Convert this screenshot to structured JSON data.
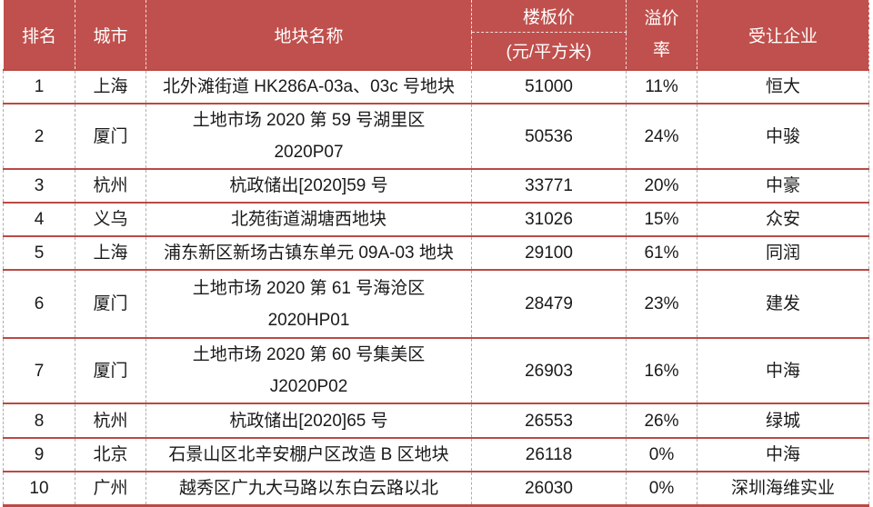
{
  "table": {
    "header": {
      "rank": "排名",
      "city": "城市",
      "parcel": "地块名称",
      "price_title": "楼板价",
      "price_unit": "(元/平方米)",
      "premium": "溢价\n率",
      "company": "受让企业"
    },
    "rows": [
      {
        "rank": "1",
        "city": "上海",
        "parcel": "北外滩街道 HK286A-03a、03c 号地块",
        "price": "51000",
        "premium": "11%",
        "company": "恒大"
      },
      {
        "rank": "2",
        "city": "厦门",
        "parcel": "土地市场 2020 第 59 号湖里区\n2020P07",
        "price": "50536",
        "premium": "24%",
        "company": "中骏"
      },
      {
        "rank": "3",
        "city": "杭州",
        "parcel": "杭政储出[2020]59 号",
        "price": "33771",
        "premium": "20%",
        "company": "中豪"
      },
      {
        "rank": "4",
        "city": "义乌",
        "parcel": "北苑街道湖塘西地块",
        "price": "31026",
        "premium": "15%",
        "company": "众安"
      },
      {
        "rank": "5",
        "city": "上海",
        "parcel": "浦东新区新场古镇东单元 09A-03 地块",
        "price": "29100",
        "premium": "61%",
        "company": "同润"
      },
      {
        "rank": "6",
        "city": "厦门",
        "parcel": "土地市场 2020 第 61 号海沧区\n2020HP01",
        "price": "28479",
        "premium": "23%",
        "company": "建发"
      },
      {
        "rank": "7",
        "city": "厦门",
        "parcel": "土地市场 2020 第 60 号集美区\nJ2020P02",
        "price": "26903",
        "premium": "16%",
        "company": "中海"
      },
      {
        "rank": "8",
        "city": "杭州",
        "parcel": "杭政储出[2020]65 号",
        "price": "26553",
        "premium": "26%",
        "company": "绿城"
      },
      {
        "rank": "9",
        "city": "北京",
        "parcel": "石景山区北辛安棚户区改造 B 区地块",
        "price": "26118",
        "premium": "0%",
        "company": "中海"
      },
      {
        "rank": "10",
        "city": "广州",
        "parcel": "越秀区广九大马路以东白云路以北",
        "price": "26030",
        "premium": "0%",
        "company": "深圳海维实业"
      }
    ]
  },
  "chart_data": {
    "type": "table",
    "title": "",
    "columns": [
      "排名",
      "城市",
      "地块名称",
      "楼板价(元/平方米)",
      "溢价率",
      "受让企业"
    ],
    "rows": [
      [
        "1",
        "上海",
        "北外滩街道 HK286A-03a、03c 号地块",
        "51000",
        "11%",
        "恒大"
      ],
      [
        "2",
        "厦门",
        "土地市场 2020 第 59 号湖里区 2020P07",
        "50536",
        "24%",
        "中骏"
      ],
      [
        "3",
        "杭州",
        "杭政储出[2020]59 号",
        "33771",
        "20%",
        "中豪"
      ],
      [
        "4",
        "义乌",
        "北苑街道湖塘西地块",
        "31026",
        "15%",
        "众安"
      ],
      [
        "5",
        "上海",
        "浦东新区新场古镇东单元 09A-03 地块",
        "29100",
        "61%",
        "同润"
      ],
      [
        "6",
        "厦门",
        "土地市场 2020 第 61 号海沧区 2020HP01",
        "28479",
        "23%",
        "建发"
      ],
      [
        "7",
        "厦门",
        "土地市场 2020 第 60 号集美区 J2020P02",
        "26903",
        "16%",
        "中海"
      ],
      [
        "8",
        "杭州",
        "杭政储出[2020]65 号",
        "26553",
        "26%",
        "绿城"
      ],
      [
        "9",
        "北京",
        "石景山区北辛安棚户区改造 B 区地块",
        "26118",
        "0%",
        "中海"
      ],
      [
        "10",
        "广州",
        "越秀区广九大马路以东白云路以北",
        "26030",
        "0%",
        "深圳海维实业"
      ]
    ]
  },
  "colors": {
    "header_bg": "#C0504D",
    "row_line_red": "#BB4A45",
    "dash_gray": "#ADADAD",
    "header_text": "#FFFFFF",
    "body_text": "#1A1A1A"
  }
}
